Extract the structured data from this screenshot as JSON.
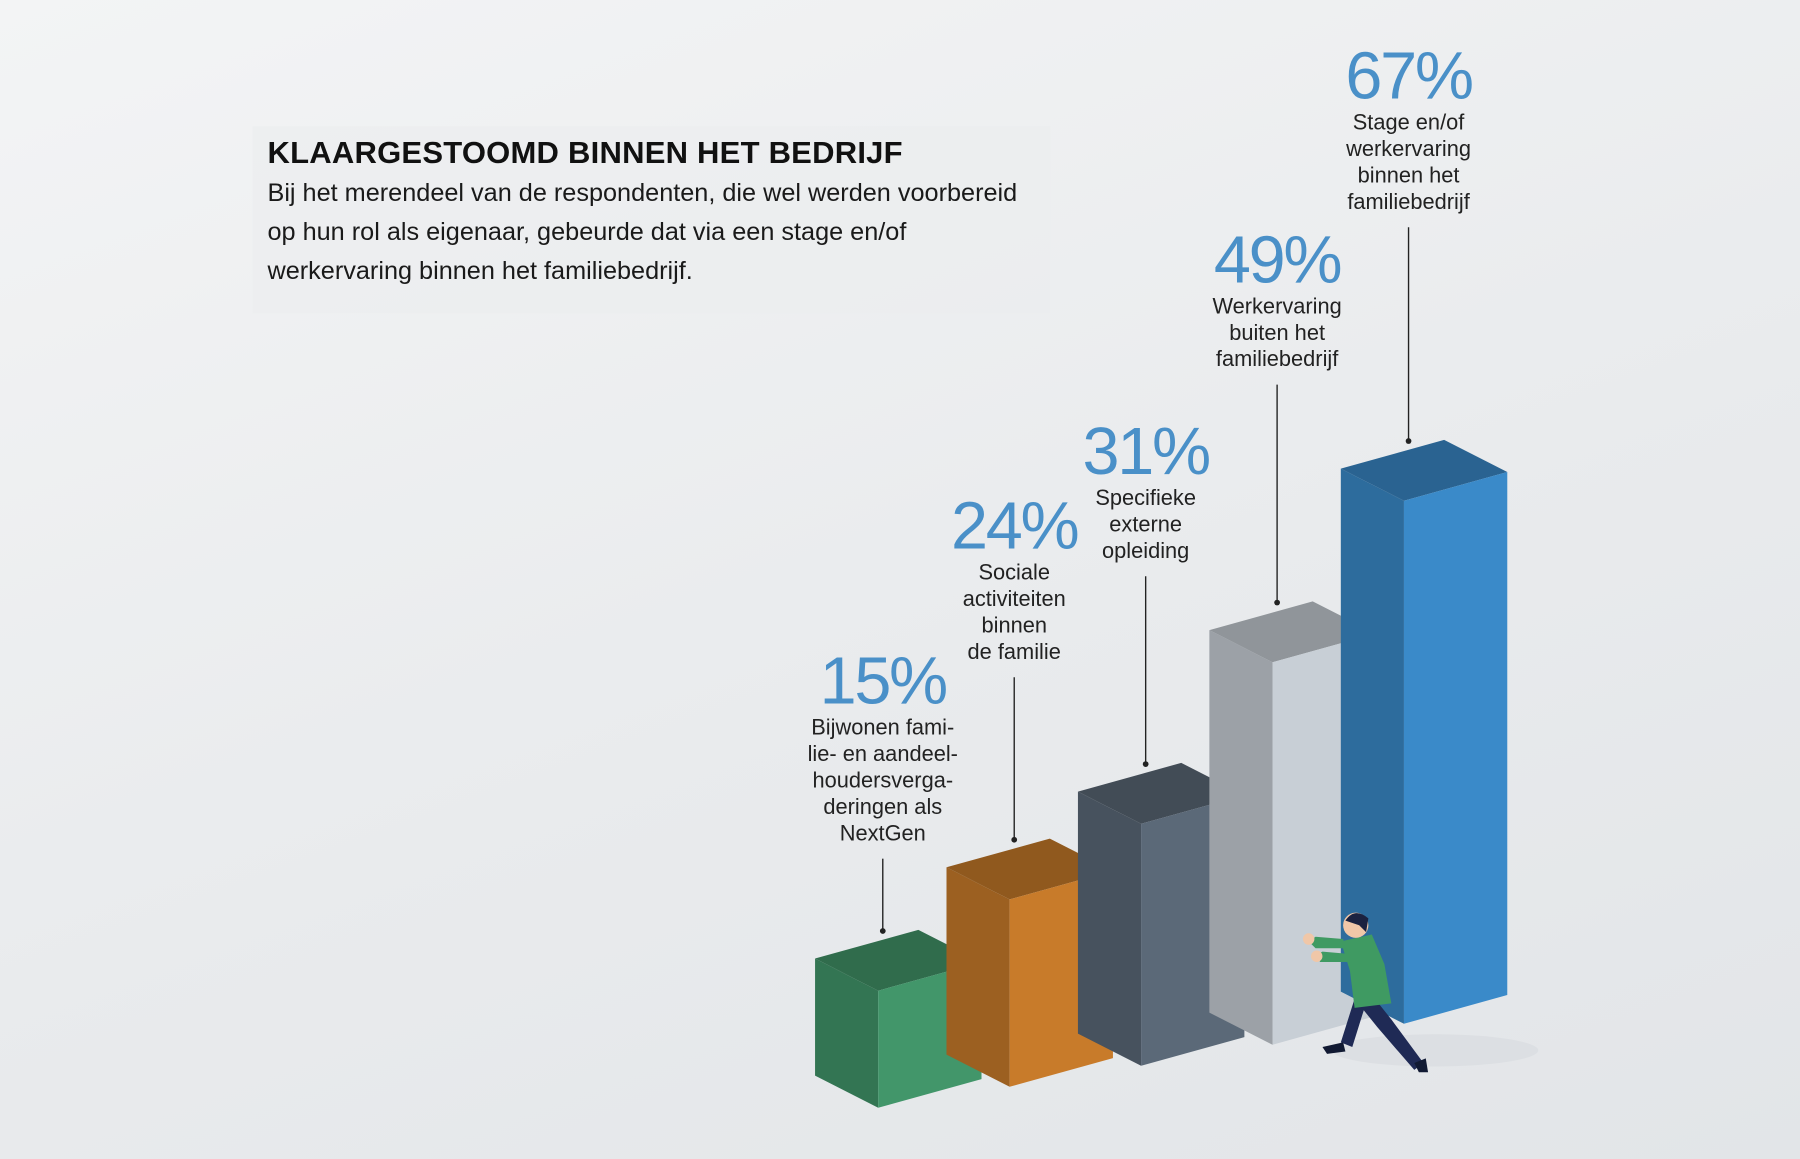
{
  "chart_data": {
    "type": "bar",
    "title": "KLAARGESTOOMD BINNEN HET BEDRIJF",
    "subtitle": "Bij het merendeel van de respondenten, die wel werden voorbereid op hun rol als eigenaar, gebeurde dat via een stage en/of werkervaring binnen het familiebedrijf.",
    "categories": [
      "Bijwonen fami-\nlie- en aandeel-\nhoudersverga-\nderingen als\nNextGen",
      "Sociale\nactiviteiten\nbinnen\nde familie",
      "Specifieke\nexterne\nopleiding",
      "Werkervaring\nbuiten het\nfamiliebedrijf",
      "Stage en/of\nwerkervaring\nbinnen het\nfamiliebedrijf"
    ],
    "values": [
      15,
      24,
      31,
      49,
      67
    ],
    "value_labels": [
      "15%",
      "24%",
      "31%",
      "49%",
      "67%"
    ],
    "colors": [
      "#42966a",
      "#c87b2a",
      "#5b6978",
      "#c8cfd6",
      "#3a8ac9"
    ]
  }
}
